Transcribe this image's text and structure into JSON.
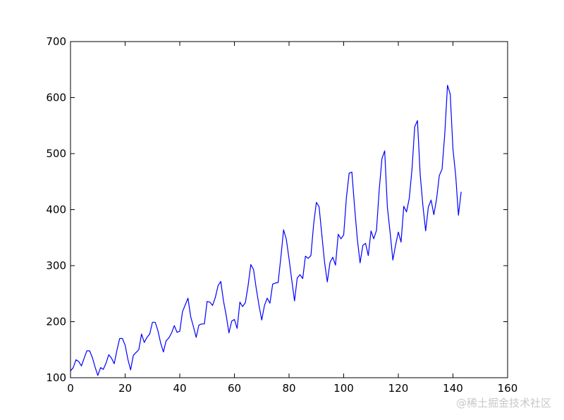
{
  "chart_data": {
    "type": "line",
    "title": "",
    "xlabel": "",
    "ylabel": "",
    "xlim": [
      0,
      160
    ],
    "ylim": [
      100,
      700
    ],
    "xticks": [
      0,
      20,
      40,
      60,
      80,
      100,
      120,
      140,
      160
    ],
    "yticks": [
      100,
      200,
      300,
      400,
      500,
      600,
      700
    ],
    "grid": false,
    "legend": "none",
    "series": [
      {
        "color": "#0000ff",
        "x": [
          0,
          1,
          2,
          3,
          4,
          5,
          6,
          7,
          8,
          9,
          10,
          11,
          12,
          13,
          14,
          15,
          16,
          17,
          18,
          19,
          20,
          21,
          22,
          23,
          24,
          25,
          26,
          27,
          28,
          29,
          30,
          31,
          32,
          33,
          34,
          35,
          36,
          37,
          38,
          39,
          40,
          41,
          42,
          43,
          44,
          45,
          46,
          47,
          48,
          49,
          50,
          51,
          52,
          53,
          54,
          55,
          56,
          57,
          58,
          59,
          60,
          61,
          62,
          63,
          64,
          65,
          66,
          67,
          68,
          69,
          70,
          71,
          72,
          73,
          74,
          75,
          76,
          77,
          78,
          79,
          80,
          81,
          82,
          83,
          84,
          85,
          86,
          87,
          88,
          89,
          90,
          91,
          92,
          93,
          94,
          95,
          96,
          97,
          98,
          99,
          100,
          101,
          102,
          103,
          104,
          105,
          106,
          107,
          108,
          109,
          110,
          111,
          112,
          113,
          114,
          115,
          116,
          117,
          118,
          119,
          120,
          121,
          122,
          123,
          124,
          125,
          126,
          127,
          128,
          129,
          130,
          131,
          132,
          133,
          134,
          135,
          136,
          137,
          138,
          139,
          140,
          141,
          142,
          143
        ],
        "y": [
          112,
          118,
          132,
          129,
          121,
          135,
          148,
          148,
          136,
          119,
          104,
          118,
          115,
          126,
          141,
          135,
          125,
          149,
          170,
          170,
          158,
          133,
          114,
          140,
          145,
          150,
          178,
          163,
          172,
          178,
          199,
          199,
          184,
          162,
          146,
          166,
          171,
          180,
          193,
          181,
          183,
          218,
          230,
          242,
          209,
          191,
          172,
          194,
          196,
          196,
          236,
          235,
          229,
          243,
          264,
          272,
          237,
          211,
          180,
          201,
          204,
          188,
          235,
          227,
          234,
          264,
          302,
          293,
          259,
          229,
          203,
          229,
          242,
          233,
          267,
          269,
          270,
          315,
          364,
          347,
          312,
          274,
          237,
          278,
          284,
          277,
          317,
          313,
          318,
          374,
          413,
          405,
          355,
          306,
          271,
          306,
          315,
          301,
          356,
          348,
          355,
          422,
          465,
          467,
          404,
          347,
          305,
          336,
          340,
          318,
          362,
          348,
          363,
          435,
          491,
          505,
          404,
          359,
          310,
          337,
          360,
          342,
          406,
          396,
          420,
          472,
          548,
          559,
          463,
          407,
          362,
          405,
          417,
          391,
          419,
          461,
          472,
          535,
          622,
          606,
          508,
          461,
          390,
          432
        ]
      }
    ]
  },
  "watermark": {
    "text": "@稀土掘金技术社区"
  }
}
